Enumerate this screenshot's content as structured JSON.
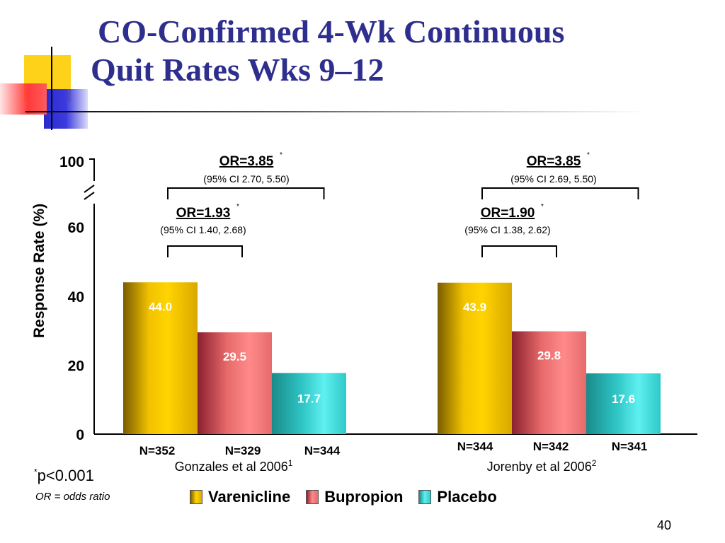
{
  "slide": {
    "title_line1": "CO-Confirmed 4-Wk Continuous",
    "title_line2": "Quit Rates Wks 9–12",
    "footnote_p": "p<0.001",
    "footnote_p_marker": "*",
    "footnote_or": "OR = odds ratio",
    "slide_number": "40"
  },
  "legend": [
    {
      "label": "Varenicline",
      "color": "#e8b800"
    },
    {
      "label": "Bupropion",
      "color": "#e86a6a"
    },
    {
      "label": "Placebo",
      "color": "#2ec4c4"
    }
  ],
  "chart_data": {
    "type": "bar",
    "ylabel": "Response Rate (%)",
    "y_ticks": [
      "0",
      "20",
      "40",
      "60",
      "100"
    ],
    "ylim": [
      0,
      100
    ],
    "axis_break": true,
    "groups": [
      {
        "name": "Gonzales et al 2006",
        "ref": "1",
        "bars": [
          {
            "series": "Varenicline",
            "value": 44.0,
            "label": "44.0",
            "n": "N=352"
          },
          {
            "series": "Bupropion",
            "value": 29.5,
            "label": "29.5",
            "n": "N=329"
          },
          {
            "series": "Placebo",
            "value": 17.7,
            "label": "17.7",
            "n": "N=344"
          }
        ],
        "odds_ratios": [
          {
            "or": "OR=3.85",
            "ci": "(95% CI  2.70, 5.50)",
            "compare": "Varenicline vs Placebo"
          },
          {
            "or": "OR=1.93",
            "ci": "(95% CI  1.40, 2.68)",
            "compare": "Varenicline vs Bupropion"
          }
        ]
      },
      {
        "name": "Jorenby et al 2006",
        "ref": "2",
        "bars": [
          {
            "series": "Varenicline",
            "value": 43.9,
            "label": "43.9",
            "n": "N=344"
          },
          {
            "series": "Bupropion",
            "value": 29.8,
            "label": "29.8",
            "n": "N=342"
          },
          {
            "series": "Placebo",
            "value": 17.6,
            "label": "17.6",
            "n": "N=341"
          }
        ],
        "odds_ratios": [
          {
            "or": "OR=3.85",
            "ci": "(95% CI  2.69, 5.50)",
            "compare": "Varenicline vs Placebo"
          },
          {
            "or": "OR=1.90",
            "ci": "(95% CI 1.38, 2.62)",
            "compare": "Varenicline vs Bupropion"
          }
        ]
      }
    ],
    "significance_marker": "*"
  }
}
